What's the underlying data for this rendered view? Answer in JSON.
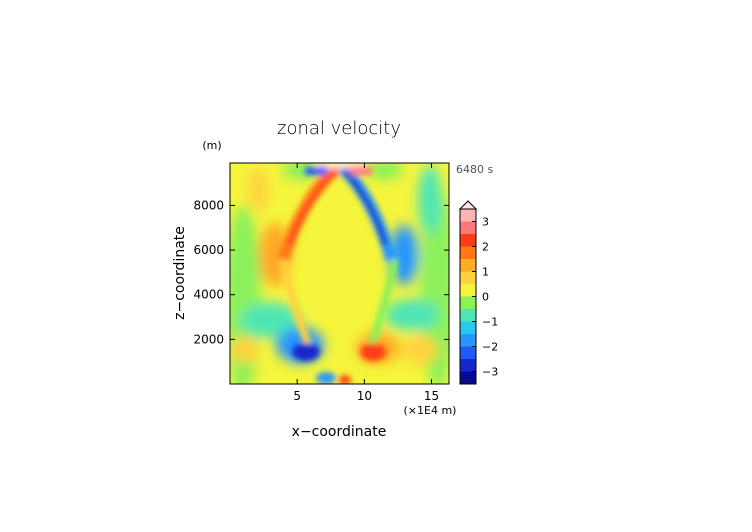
{
  "chart_data": {
    "type": "heatmap",
    "title": "zonal velocity",
    "xlabel": "x−coordinate",
    "ylabel": "z−coordinate",
    "x_unit": "(×1E4 m)",
    "y_unit": "(m)",
    "time_label": "6480 s",
    "xlim": [
      0,
      16.3
    ],
    "ylim": [
      0,
      9900
    ],
    "x_ticks": [
      5,
      10,
      15
    ],
    "y_ticks": [
      2000,
      4000,
      6000,
      8000
    ],
    "colorbar": {
      "ticks": [
        "3",
        "2",
        "1",
        "0",
        "−1",
        "−2",
        "−3"
      ],
      "levels": [
        -3.5,
        -3,
        -2.5,
        -2,
        -1.5,
        -1,
        -0.5,
        0,
        0.5,
        1,
        1.5,
        2,
        2.5,
        3,
        3.5
      ],
      "colors": [
        "#0a0a8c",
        "#1428c8",
        "#1e5aff",
        "#2896ff",
        "#28c8f0",
        "#50e6b4",
        "#8cf05a",
        "#f5f53c",
        "#ffd23c",
        "#ffaa28",
        "#ff7814",
        "#ff3c14",
        "#ff7878",
        "#ffb4b4",
        "#ffe1e1"
      ]
    }
  }
}
